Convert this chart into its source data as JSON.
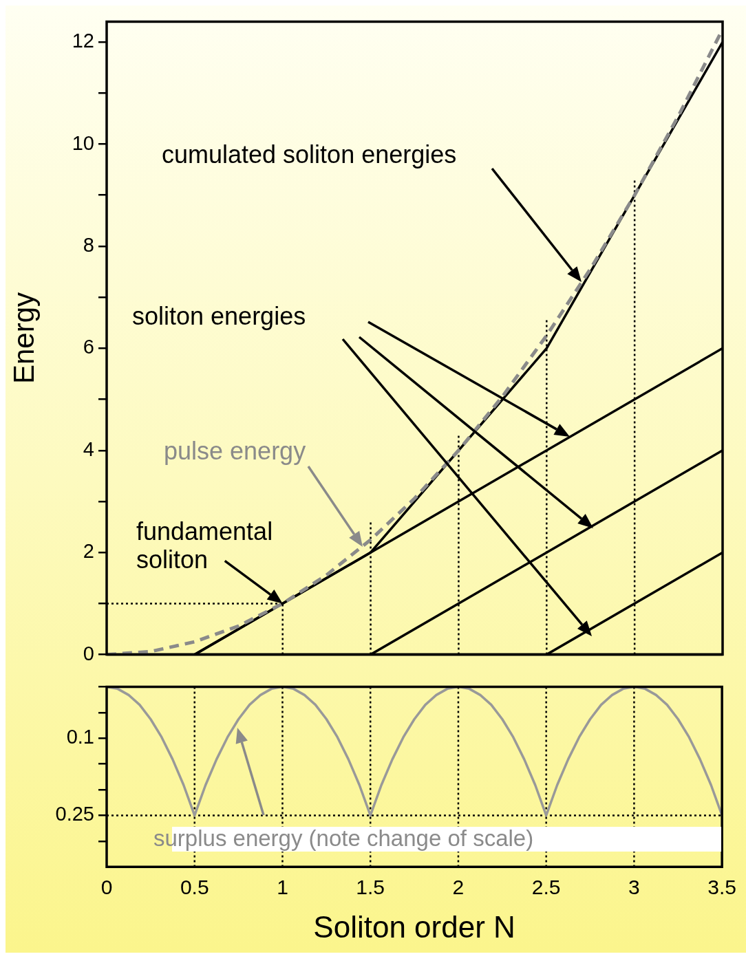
{
  "chart_data": [
    {
      "type": "line",
      "xlim": [
        0,
        3.5
      ],
      "ylim": [
        0,
        12.4
      ],
      "yticks": [
        0,
        {
          "value": 1,
          "label": null
        },
        2,
        {
          "value": 3,
          "label": null
        },
        4,
        {
          "value": 5,
          "label": null
        },
        6,
        {
          "value": 7,
          "label": null
        },
        8,
        {
          "value": 9,
          "label": null
        },
        10,
        {
          "value": 11,
          "label": null
        },
        12
      ],
      "ylabel": "Energy",
      "tick_labels": "y",
      "grid": false,
      "legend": false,
      "marker": "none",
      "ref_lines": [
        {
          "axis": "y",
          "value": 0,
          "color": "#000000",
          "line_style": "solid"
        }
      ],
      "series": [
        {
          "color": "#8a8a8a",
          "line_style": "dashed",
          "x": [
            0,
            0.25,
            0.5,
            0.75,
            1,
            1.25,
            1.5,
            1.75,
            2,
            2.25,
            2.5,
            2.75,
            3,
            3.25,
            3.5
          ],
          "values": [
            0,
            0.06,
            0.25,
            0.56,
            1,
            1.56,
            2.25,
            3.06,
            4,
            5.06,
            6.25,
            7.56,
            9,
            10.56,
            12.25
          ]
        },
        {
          "color": "#000000",
          "line_style": "solid",
          "x": [
            0.5,
            1.5,
            2.5,
            3.5
          ],
          "values": [
            0,
            2,
            6,
            12
          ]
        },
        {
          "color": "#000000",
          "line_style": "solid",
          "x": [
            0.5,
            3.5
          ],
          "values": [
            0,
            6
          ]
        },
        {
          "color": "#000000",
          "line_style": "solid",
          "x": [
            1.5,
            3.5
          ],
          "values": [
            0,
            4
          ]
        },
        {
          "color": "#000000",
          "line_style": "solid",
          "x": [
            2.5,
            3.5
          ],
          "values": [
            0,
            2
          ]
        },
        {
          "color": "#000000",
          "line_style": "dotted",
          "x": [
            0,
            1
          ],
          "values": [
            1,
            1
          ]
        },
        {
          "color": "#000000",
          "line_style": "dotted",
          "x": [
            1,
            1
          ],
          "values": [
            0,
            1
          ]
        },
        {
          "color": "#000000",
          "line_style": "dotted",
          "x": [
            1.5,
            1.5
          ],
          "values": [
            0,
            2.6
          ]
        },
        {
          "color": "#000000",
          "line_style": "dotted",
          "x": [
            2,
            2
          ],
          "values": [
            0,
            4.3
          ]
        },
        {
          "color": "#000000",
          "line_style": "dotted",
          "x": [
            2.5,
            2.5
          ],
          "values": [
            0,
            6.6
          ]
        },
        {
          "color": "#000000",
          "line_style": "dotted",
          "x": [
            3,
            3
          ],
          "values": [
            0,
            9.3
          ]
        }
      ],
      "annotations": [
        "cumulated soliton energies",
        "soliton energies",
        "pulse energy",
        {
          "text": "fundamental soliton",
          "x": 1,
          "y": 1
        }
      ]
    },
    {
      "type": "line",
      "xlim": [
        0,
        3.5
      ],
      "xticks": [
        0,
        0.5,
        1,
        1.5,
        2,
        2.5,
        3,
        3.5
      ],
      "ylim": [
        0.35,
        0
      ],
      "yticks": [
        {
          "value": 0,
          "label": null
        },
        {
          "value": 0.05,
          "label": null
        },
        0.1,
        {
          "value": 0.15,
          "label": null
        },
        {
          "value": 0.2,
          "label": null
        },
        0.25,
        {
          "value": 0.3,
          "label": null
        }
      ],
      "xlabel": "Soliton order N",
      "grid": false,
      "legend": false,
      "marker": "none",
      "ref_lines": [
        {
          "axis": "x",
          "value": 0.5,
          "color": "#000000",
          "line_style": "dotted"
        },
        {
          "axis": "x",
          "value": 1,
          "color": "#000000",
          "line_style": "dotted"
        },
        {
          "axis": "x",
          "value": 1.5,
          "color": "#000000",
          "line_style": "dotted"
        },
        {
          "axis": "x",
          "value": 2,
          "color": "#000000",
          "line_style": "dotted"
        },
        {
          "axis": "x",
          "value": 2.5,
          "color": "#000000",
          "line_style": "dotted"
        },
        {
          "axis": "x",
          "value": 3,
          "color": "#000000",
          "line_style": "dotted"
        },
        {
          "axis": "y",
          "value": 0.25,
          "color": "#000000",
          "line_style": "dotted"
        }
      ],
      "series": [
        {
          "color": "#999999",
          "line_style": "solid",
          "x": [
            0,
            0.0625,
            0.125,
            0.1875,
            0.25,
            0.3125,
            0.375,
            0.4375,
            0.5,
            0.5625,
            0.625,
            0.6875,
            0.75,
            0.8125,
            0.875,
            0.9375,
            1,
            1.0625,
            1.125,
            1.1875,
            1.25,
            1.3125,
            1.375,
            1.4375,
            1.5,
            1.5625,
            1.625,
            1.6875,
            1.75,
            1.8125,
            1.875,
            1.9375,
            2,
            2.0625,
            2.125,
            2.1875,
            2.25,
            2.3125,
            2.375,
            2.4375,
            2.5,
            2.5625,
            2.625,
            2.6875,
            2.75,
            2.8125,
            2.875,
            2.9375,
            3,
            3.0625,
            3.125,
            3.1875,
            3.25,
            3.3125,
            3.375,
            3.4375,
            3.5
          ],
          "values": [
            0,
            0.004,
            0.016,
            0.035,
            0.063,
            0.098,
            0.141,
            0.191,
            0.25,
            0.191,
            0.141,
            0.098,
            0.063,
            0.035,
            0.016,
            0.004,
            0,
            0.004,
            0.016,
            0.035,
            0.063,
            0.098,
            0.141,
            0.191,
            0.25,
            0.191,
            0.141,
            0.098,
            0.063,
            0.035,
            0.016,
            0.004,
            0,
            0.004,
            0.016,
            0.035,
            0.063,
            0.098,
            0.141,
            0.191,
            0.25,
            0.191,
            0.141,
            0.098,
            0.063,
            0.035,
            0.016,
            0.004,
            0,
            0.004,
            0.016,
            0.035,
            0.063,
            0.098,
            0.141,
            0.191,
            0.25
          ]
        }
      ],
      "annotations": [
        "surplus energy (note change of scale)"
      ]
    }
  ]
}
